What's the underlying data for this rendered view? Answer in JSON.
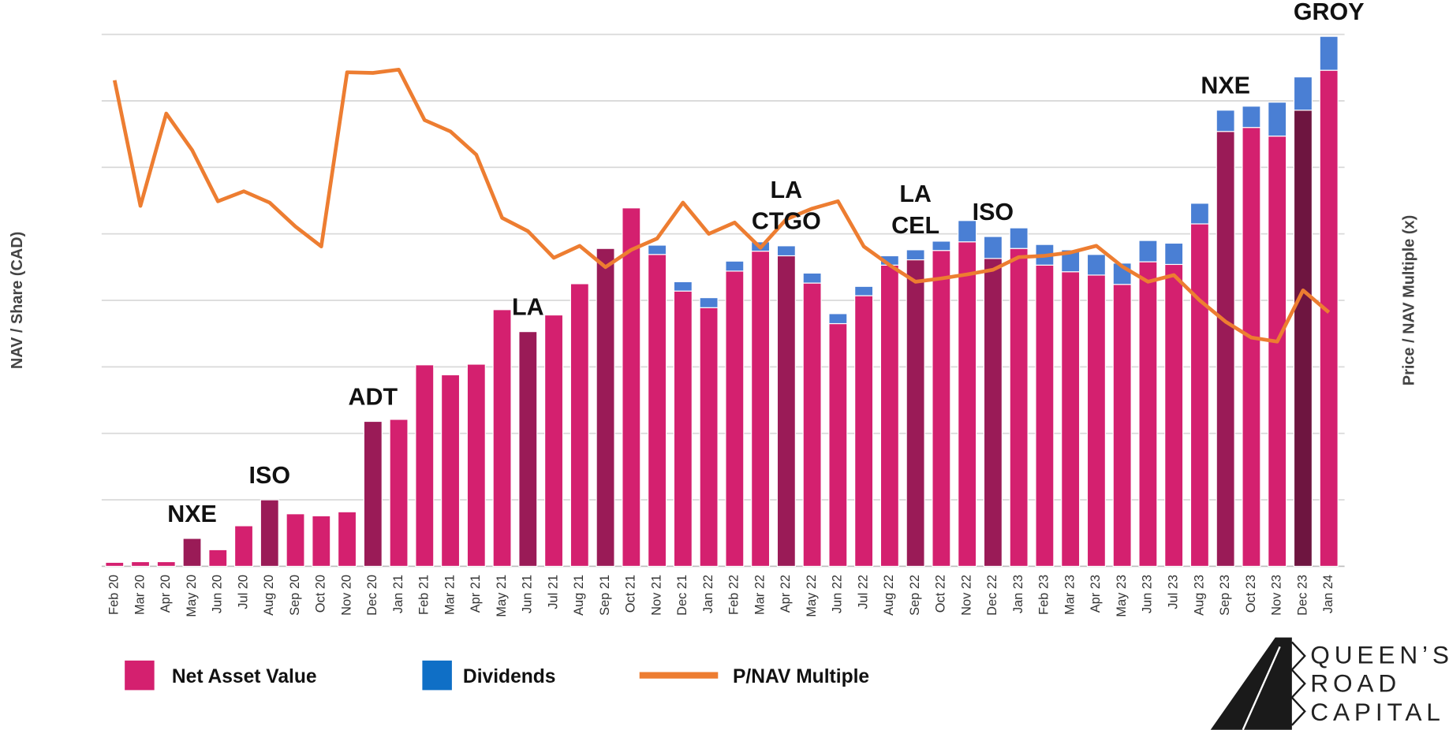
{
  "chart_data": {
    "type": "bar",
    "stacked": true,
    "categories": [
      "Feb 20",
      "Mar 20",
      "Apr 20",
      "May 20",
      "Jun 20",
      "Jul 20",
      "Aug 20",
      "Sep 20",
      "Oct 20",
      "Nov 20",
      "Dec 20",
      "Jan 21",
      "Feb 21",
      "Mar 21",
      "Apr 21",
      "May 21",
      "Jun 21",
      "Jul 21",
      "Aug 21",
      "Sep 21",
      "Oct 21",
      "Nov 21",
      "Dec 21",
      "Jan 22",
      "Feb 22",
      "Mar 22",
      "Apr 22",
      "May 22",
      "Jun 22",
      "Jul 22",
      "Aug 22",
      "Sep 22",
      "Oct 22",
      "Nov 22",
      "Dec 22",
      "Jan 23",
      "Feb 23",
      "Mar 23",
      "Apr 23",
      "May 23",
      "Jun 23",
      "Jul 23",
      "Aug 23",
      "Sep 23",
      "Oct 23",
      "Nov 23",
      "Dec 23",
      "Jan 24"
    ],
    "series": [
      {
        "name": "Net Asset Value",
        "color": "#d4206f",
        "colors": [
          "#d4206f",
          "#d4206f",
          "#d4206f",
          "#9a1b57",
          "#d4206f",
          "#d4206f",
          "#9a1b57",
          "#d4206f",
          "#d4206f",
          "#d4206f",
          "#9a1b57",
          "#d4206f",
          "#d4206f",
          "#d4206f",
          "#d4206f",
          "#d4206f",
          "#9a1b57",
          "#d4206f",
          "#d4206f",
          "#9a1b57",
          "#d4206f",
          "#d4206f",
          "#d4206f",
          "#d4206f",
          "#d4206f",
          "#d4206f",
          "#9a1b57",
          "#d4206f",
          "#d4206f",
          "#d4206f",
          "#d4206f",
          "#9a1b57",
          "#d4206f",
          "#d4206f",
          "#9a1b57",
          "#d4206f",
          "#d4206f",
          "#d4206f",
          "#d4206f",
          "#d4206f",
          "#d4206f",
          "#d4206f",
          "#d4206f",
          "#9a1b57",
          "#d4206f",
          "#d4206f",
          "#6e1540",
          "#d4206f"
        ],
        "values": [
          0.06,
          0.07,
          0.07,
          0.42,
          0.25,
          0.61,
          1.0,
          0.79,
          0.76,
          0.82,
          2.18,
          2.21,
          3.03,
          2.88,
          3.04,
          3.86,
          3.53,
          3.78,
          4.25,
          4.78,
          5.39,
          4.69,
          4.14,
          3.89,
          4.44,
          4.74,
          4.67,
          4.26,
          3.65,
          4.07,
          4.53,
          4.61,
          4.75,
          4.88,
          4.63,
          4.78,
          4.53,
          4.43,
          4.38,
          4.24,
          4.58,
          4.54,
          5.15,
          6.54,
          6.6,
          6.47,
          6.86,
          7.46
        ]
      },
      {
        "name": "Dividends",
        "color": "#4a7fd4",
        "legend_color": "#0f6fc6",
        "values": [
          null,
          null,
          null,
          null,
          null,
          null,
          null,
          null,
          null,
          null,
          null,
          null,
          null,
          null,
          null,
          null,
          null,
          null,
          null,
          null,
          null,
          0.14,
          0.14,
          0.15,
          0.15,
          0.14,
          0.15,
          0.15,
          0.15,
          0.14,
          0.14,
          0.15,
          0.14,
          0.32,
          0.33,
          0.31,
          0.31,
          0.33,
          0.31,
          0.32,
          0.32,
          0.32,
          0.31,
          0.32,
          0.32,
          0.51,
          0.5,
          0.51
        ]
      },
      {
        "name": "P/NAV Multiple",
        "type": "line",
        "axis": "y2",
        "color": "#ed7d31",
        "values": [
          7.31,
          5.42,
          6.81,
          6.26,
          5.49,
          5.64,
          5.47,
          5.11,
          4.81,
          7.43,
          7.42,
          7.47,
          6.71,
          6.54,
          6.19,
          5.24,
          5.04,
          4.64,
          4.82,
          4.5,
          4.76,
          4.93,
          5.47,
          5.0,
          5.17,
          4.79,
          5.22,
          5.38,
          5.49,
          4.81,
          4.53,
          4.28,
          4.33,
          4.39,
          4.46,
          4.65,
          4.67,
          4.72,
          4.82,
          4.51,
          4.28,
          4.38,
          4.0,
          3.68,
          3.44,
          3.38,
          4.15,
          3.82
        ]
      }
    ],
    "ylim": [
      0,
      8
    ],
    "y2lim": [
      0,
      8
    ],
    "gridlines": [
      1,
      2,
      3,
      4,
      5,
      6,
      7,
      8
    ],
    "grid": true,
    "y_label": "NAV / Share (CAD)",
    "y2_label": "Price / NAV Multiple (x)",
    "annotations": [
      {
        "category": "May 20",
        "lines": [
          "NXE"
        ]
      },
      {
        "category": "Aug 20",
        "lines": [
          "ISO"
        ]
      },
      {
        "category": "Dec 20",
        "lines": [
          "ADT"
        ]
      },
      {
        "category": "Jun 21",
        "lines": [
          "LA"
        ]
      },
      {
        "category": "Apr 22",
        "lines": [
          "LA",
          "CTGO"
        ]
      },
      {
        "category": "Sep 22",
        "lines": [
          "LA",
          "CEL"
        ]
      },
      {
        "category": "Dec 22",
        "lines": [
          "ISO"
        ]
      },
      {
        "category": "Sep 23",
        "lines": [
          "NXE"
        ]
      },
      {
        "category": "Jan 24",
        "lines": [
          "GROY"
        ]
      }
    ],
    "legend": "bottom-left",
    "logo": [
      "QUEEN’S",
      "ROAD",
      "CAPITAL"
    ]
  }
}
